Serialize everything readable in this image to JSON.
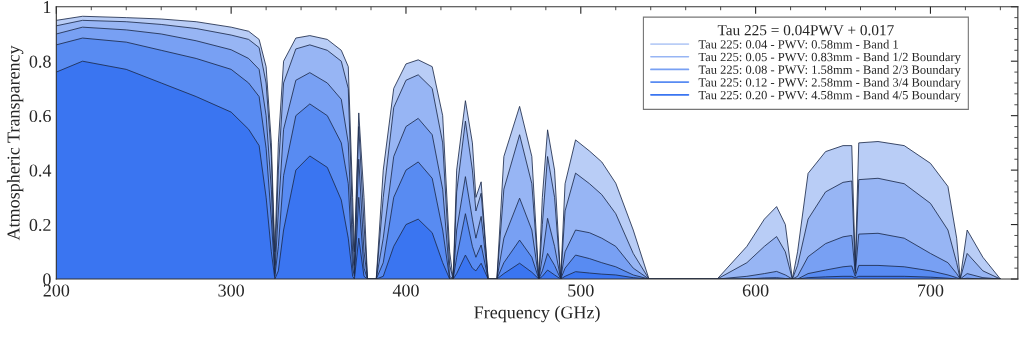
{
  "chart_data": {
    "type": "area",
    "xlabel": "Frequency (GHz)",
    "ylabel": "Atmospheric Transparency",
    "legend_title": "Tau 225 = 0.04PWV + 0.017",
    "legend": "top right",
    "grid": false,
    "xlim": [
      200,
      750
    ],
    "ylim": [
      0,
      1
    ],
    "xticks": [
      200,
      300,
      400,
      500,
      600,
      700
    ],
    "yticks": [
      {
        "value": 0,
        "label": "0"
      },
      0.2,
      0.4,
      0.6,
      0.8,
      {
        "value": 1,
        "label": "1"
      }
    ],
    "x": [
      200,
      215,
      240,
      260,
      280,
      300,
      310,
      316,
      320,
      323,
      325,
      327,
      330,
      337,
      345,
      355,
      363,
      367,
      369.5,
      370.5,
      373,
      376,
      378,
      383,
      387,
      393,
      400,
      407,
      415,
      421,
      425,
      427,
      429,
      434,
      438,
      440,
      443,
      447,
      452,
      456,
      465,
      472,
      476,
      478,
      481,
      485,
      488.5,
      491,
      497,
      505,
      512,
      520,
      530,
      539,
      578,
      595,
      605,
      612,
      617,
      621,
      624,
      630,
      640,
      650,
      655,
      657,
      659,
      670,
      685,
      700,
      710,
      715,
      717,
      721,
      730,
      740
    ],
    "series": [
      {
        "name": "Tau 225: 0.04 - PWV: 0.58mm - Band 1",
        "color": "#b9cdf6",
        "values": [
          0.95,
          0.965,
          0.96,
          0.955,
          0.945,
          0.925,
          0.91,
          0.88,
          0.78,
          0.5,
          0.1,
          0.5,
          0.8,
          0.885,
          0.894,
          0.88,
          0.84,
          0.78,
          0.3,
          0.1,
          0.61,
          0.3,
          0,
          0,
          0.4,
          0.7,
          0.79,
          0.805,
          0.78,
          0.6,
          0.1,
          0,
          0.4,
          0.655,
          0.5,
          0.3,
          0.357,
          0,
          0,
          0.45,
          0.634,
          0.45,
          0,
          0.3,
          0.548,
          0.4,
          0,
          0.35,
          0.511,
          0.47,
          0.43,
          0.352,
          0.18,
          0,
          0,
          0.12,
          0.22,
          0.266,
          0.2,
          0,
          0.1,
          0.388,
          0.468,
          0.49,
          0.49,
          0.05,
          0.5,
          0.505,
          0.49,
          0.425,
          0.34,
          0.15,
          0,
          0.18,
          0.08,
          0
        ]
      },
      {
        "name": "Tau 225: 0.05 - PWV: 0.83mm - Band 1/2 Boundary",
        "color": "#97b5f4",
        "values": [
          0.93,
          0.95,
          0.945,
          0.935,
          0.92,
          0.896,
          0.88,
          0.85,
          0.72,
          0.45,
          0.05,
          0.4,
          0.72,
          0.845,
          0.86,
          0.84,
          0.8,
          0.7,
          0.2,
          0.05,
          0.56,
          0.2,
          0,
          0,
          0.3,
          0.63,
          0.73,
          0.75,
          0.7,
          0.5,
          0.05,
          0,
          0.32,
          0.58,
          0.4,
          0.25,
          0.315,
          0,
          0,
          0.33,
          0.53,
          0.35,
          0,
          0.2,
          0.45,
          0.3,
          0,
          0.25,
          0.389,
          0.35,
          0.31,
          0.24,
          0.094,
          0,
          0,
          0.06,
          0.12,
          0.156,
          0.1,
          0,
          0.05,
          0.22,
          0.32,
          0.355,
          0.36,
          0.03,
          0.365,
          0.37,
          0.35,
          0.278,
          0.18,
          0.06,
          0,
          0.094,
          0.03,
          0
        ]
      },
      {
        "name": "Tau 225: 0.08 - PWV: 1.58mm - Band 2/3 Boundary",
        "color": "#78a0f3",
        "values": [
          0.9,
          0.925,
          0.915,
          0.9,
          0.875,
          0.842,
          0.81,
          0.77,
          0.6,
          0.33,
          0.02,
          0.25,
          0.55,
          0.73,
          0.758,
          0.72,
          0.66,
          0.5,
          0.1,
          0.02,
          0.44,
          0.1,
          0,
          0,
          0.15,
          0.45,
          0.56,
          0.59,
          0.53,
          0.33,
          0.01,
          0,
          0.18,
          0.376,
          0.22,
          0.15,
          0.23,
          0,
          0,
          0.15,
          0.297,
          0.18,
          0,
          0.08,
          0.223,
          0.12,
          0,
          0.1,
          0.18,
          0.17,
          0.15,
          0.12,
          0.04,
          0,
          0,
          0.01,
          0.02,
          0.028,
          0.015,
          0,
          0.01,
          0.082,
          0.13,
          0.155,
          0.16,
          0.02,
          0.165,
          0.168,
          0.15,
          0.094,
          0.06,
          0.02,
          0,
          0.02,
          0.005,
          0
        ]
      },
      {
        "name": "Tau 225: 0.12 - PWV: 2.58mm - Band 3/4 Boundary",
        "color": "#588bf2",
        "values": [
          0.86,
          0.885,
          0.87,
          0.84,
          0.81,
          0.77,
          0.72,
          0.67,
          0.48,
          0.22,
          0.01,
          0.12,
          0.38,
          0.6,
          0.643,
          0.6,
          0.5,
          0.35,
          0.04,
          0.01,
          0.3,
          0.04,
          0,
          0,
          0.06,
          0.3,
          0.4,
          0.43,
          0.37,
          0.18,
          0,
          0,
          0.08,
          0.24,
          0.12,
          0.08,
          0.125,
          0,
          0,
          0.06,
          0.143,
          0.08,
          0,
          0.03,
          0.094,
          0.05,
          0,
          0.04,
          0.088,
          0.075,
          0.06,
          0.045,
          0.015,
          0,
          0,
          0,
          0.004,
          0.005,
          0.002,
          0,
          0,
          0.02,
          0.033,
          0.045,
          0.048,
          0.01,
          0.05,
          0.05,
          0.045,
          0.03,
          0.015,
          0.005,
          0,
          0.003,
          0,
          0
        ]
      },
      {
        "name": "Tau 225: 0.20 - PWV: 4.58mm - Band 4/5 Boundary",
        "color": "#3a75f1",
        "values": [
          0.76,
          0.8,
          0.77,
          0.72,
          0.67,
          0.613,
          0.55,
          0.49,
          0.3,
          0.1,
          0,
          0.03,
          0.18,
          0.4,
          0.452,
          0.41,
          0.29,
          0.15,
          0.01,
          0,
          0.15,
          0.01,
          0,
          0,
          0.01,
          0.12,
          0.2,
          0.22,
          0.17,
          0.06,
          0,
          0,
          0.02,
          0.088,
          0.04,
          0.03,
          0.058,
          0,
          0,
          0.02,
          0.058,
          0.025,
          0,
          0.01,
          0.033,
          0.015,
          0,
          0.01,
          0.027,
          0.022,
          0.018,
          0.015,
          0.005,
          0,
          0,
          0,
          0,
          0,
          0,
          0,
          0,
          0.005,
          0.008,
          0.01,
          0.01,
          0.005,
          0.01,
          0.01,
          0.01,
          0.007,
          0.003,
          0,
          0,
          0,
          0,
          0
        ]
      }
    ]
  }
}
